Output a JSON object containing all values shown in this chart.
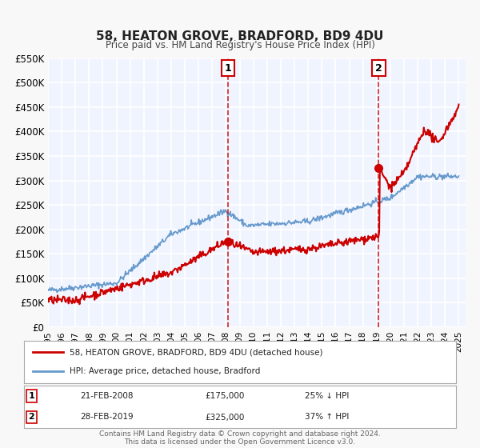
{
  "title": "58, HEATON GROVE, BRADFORD, BD9 4DU",
  "subtitle": "Price paid vs. HM Land Registry's House Price Index (HPI)",
  "ylim": [
    0,
    550000
  ],
  "yticks": [
    0,
    50000,
    100000,
    150000,
    200000,
    250000,
    300000,
    350000,
    400000,
    450000,
    500000,
    550000
  ],
  "ytick_labels": [
    "£0",
    "£50K",
    "£100K",
    "£150K",
    "£200K",
    "£250K",
    "£300K",
    "£350K",
    "£400K",
    "£450K",
    "£500K",
    "£550K"
  ],
  "xlim_start": 1995.0,
  "xlim_end": 2025.5,
  "xtick_years": [
    1995,
    1996,
    1997,
    1998,
    1999,
    2000,
    2001,
    2002,
    2003,
    2004,
    2005,
    2006,
    2007,
    2008,
    2009,
    2010,
    2011,
    2012,
    2013,
    2014,
    2015,
    2016,
    2017,
    2018,
    2019,
    2020,
    2021,
    2022,
    2023,
    2024,
    2025
  ],
  "bg_color": "#f0f4ff",
  "plot_bg_color": "#f0f4ff",
  "grid_color": "#ffffff",
  "red_line_color": "#cc0000",
  "blue_line_color": "#6699cc",
  "sale1_x": 2008.13,
  "sale1_y": 175000,
  "sale1_label": "1",
  "sale1_date": "21-FEB-2008",
  "sale1_price": "£175,000",
  "sale1_hpi": "25% ↓ HPI",
  "sale2_x": 2019.16,
  "sale2_y": 325000,
  "sale2_label": "2",
  "sale2_date": "28-FEB-2019",
  "sale2_price": "£325,000",
  "sale2_hpi": "37% ↑ HPI",
  "legend_line1": "58, HEATON GROVE, BRADFORD, BD9 4DU (detached house)",
  "legend_line2": "HPI: Average price, detached house, Bradford",
  "footer": "Contains HM Land Registry data © Crown copyright and database right 2024.\nThis data is licensed under the Open Government Licence v3.0."
}
